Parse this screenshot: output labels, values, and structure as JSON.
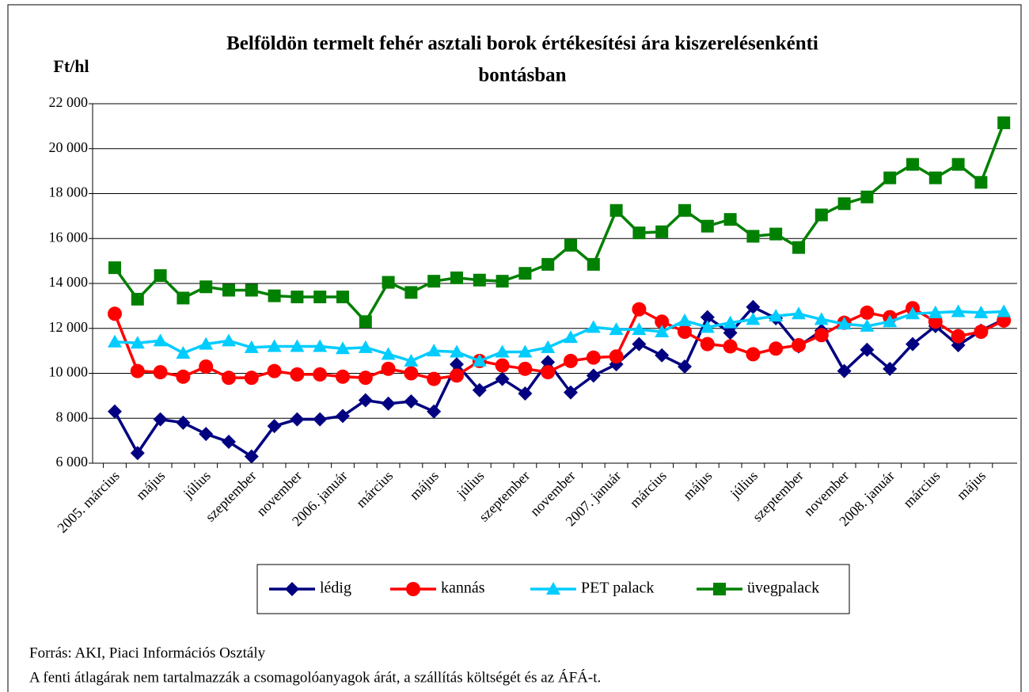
{
  "chart_data": {
    "type": "line",
    "title": "Belföldön termelt fehér asztali borok értékesítési ára kiszerelésenkénti bontásban",
    "y_label": "Ft/hl",
    "categories": [
      "2005. március",
      null,
      "május",
      null,
      "július",
      null,
      "szeptember",
      null,
      "november",
      null,
      "2006. január",
      null,
      "március",
      null,
      "május",
      null,
      "július",
      null,
      "szeptember",
      null,
      "november",
      null,
      "2007. január",
      null,
      "március",
      null,
      "május",
      null,
      "július",
      null,
      "szeptember",
      null,
      "november",
      null,
      "2008. január",
      null,
      "március",
      null,
      "május",
      null
    ],
    "series": [
      {
        "name": "lédig",
        "color": "#000080",
        "marker": "diamond",
        "values": [
          8300,
          6450,
          7950,
          7800,
          7300,
          6950,
          6300,
          7650,
          7950,
          7950,
          8100,
          8800,
          8650,
          8750,
          8300,
          10400,
          9250,
          9750,
          9100,
          10500,
          9150,
          9900,
          10400,
          11300,
          10800,
          10300,
          12500,
          11800,
          12950,
          12450,
          11200,
          11900,
          10100,
          11050,
          10200,
          11300,
          12100,
          11250,
          11900,
          12400
        ]
      },
      {
        "name": "kannás",
        "color": "#ff0000",
        "marker": "circle",
        "values": [
          12650,
          10100,
          10050,
          9850,
          10300,
          9800,
          9800,
          10100,
          9950,
          9950,
          9850,
          9800,
          10200,
          10000,
          9750,
          9900,
          10550,
          10350,
          10200,
          10050,
          10550,
          10700,
          10750,
          12850,
          12300,
          11850,
          11300,
          11200,
          10850,
          11100,
          11250,
          11700,
          12250,
          12700,
          12500,
          12900,
          12300,
          11650,
          11850,
          12350
        ]
      },
      {
        "name": "PET palack",
        "color": "#00ccff",
        "marker": "triangle",
        "values": [
          11400,
          11350,
          11450,
          10900,
          11300,
          11450,
          11150,
          11200,
          11200,
          11200,
          11100,
          11150,
          10850,
          10550,
          11000,
          10950,
          10550,
          10950,
          10950,
          11150,
          11600,
          12050,
          11950,
          11950,
          11850,
          12350,
          12050,
          12250,
          12400,
          12550,
          12650,
          12400,
          12200,
          12100,
          12300,
          12650,
          12700,
          12750,
          12700,
          12750
        ]
      },
      {
        "name": "üvegpalack",
        "color": "#008000",
        "marker": "square",
        "values": [
          14700,
          13300,
          14350,
          13350,
          13850,
          13700,
          13700,
          13450,
          13400,
          13400,
          13400,
          12300,
          14050,
          13600,
          14100,
          14250,
          14150,
          14100,
          14450,
          14850,
          15700,
          14850,
          17250,
          16250,
          16300,
          17250,
          16550,
          16850,
          16100,
          16200,
          15600,
          17050,
          17550,
          17850,
          18700,
          19300,
          18700,
          19300,
          18500,
          21150
        ]
      }
    ],
    "ylim": [
      6000,
      22000
    ],
    "yticks": [
      {
        "value": 6000,
        "label": "6 000"
      },
      {
        "value": 8000,
        "label": "8 000"
      },
      {
        "value": 10000,
        "label": "10 000"
      },
      {
        "value": 12000,
        "label": "12 000"
      },
      {
        "value": 14000,
        "label": "14 000"
      },
      {
        "value": 16000,
        "label": "16 000"
      },
      {
        "value": 18000,
        "label": "18 000"
      },
      {
        "value": 20000,
        "label": "20 000"
      },
      {
        "value": 22000,
        "label": "22 000"
      }
    ],
    "grid": true,
    "legend": "bottom",
    "source": "Forrás: AKI, Piaci Információs Osztály",
    "note": "A fenti átlagárak nem tartalmazzák a csomagolóanyagok árát, a szállítás költségét és az ÁFÁ-t."
  }
}
